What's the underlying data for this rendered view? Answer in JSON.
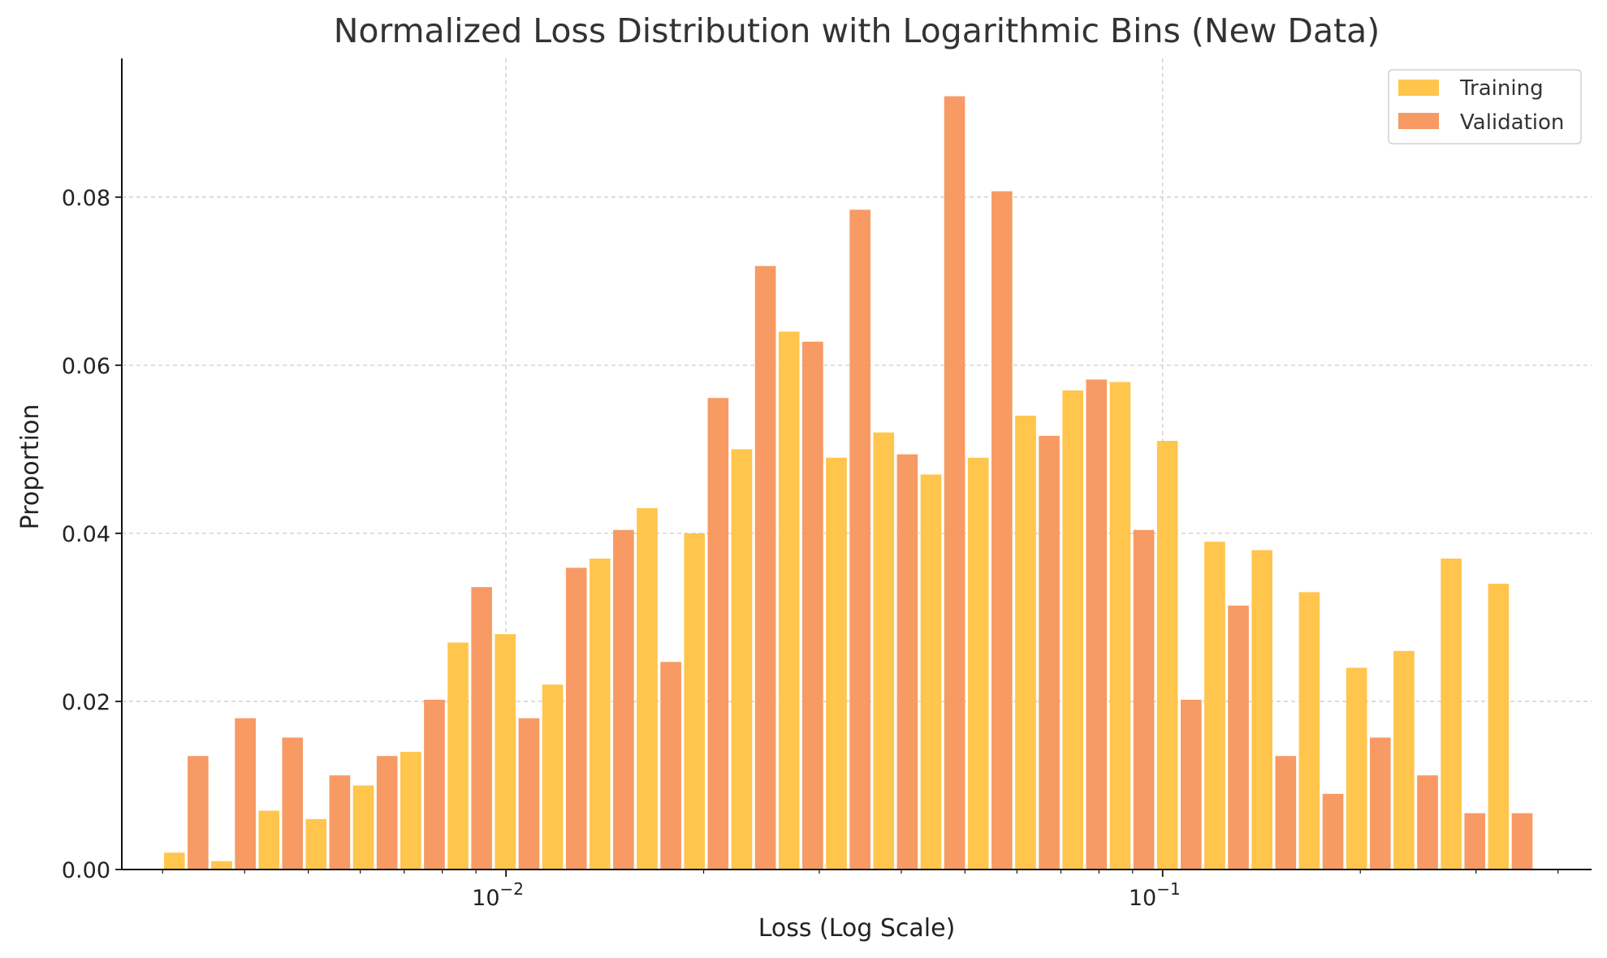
{
  "chart_data": {
    "type": "bar",
    "title": "Normalized Loss Distribution with Logarithmic Bins (New Data)",
    "xlabel": "Loss (Log Scale)",
    "ylabel": "Proportion",
    "x_scale": "log",
    "x_range": [
      0.0026,
      0.45
    ],
    "ylim": [
      0,
      0.0965
    ],
    "y_ticks": [
      "0.00",
      "0.02",
      "0.04",
      "0.06",
      "0.08"
    ],
    "x_ticks": [
      {
        "value": 0.01,
        "base": "10",
        "exp": "−2"
      },
      {
        "value": 0.1,
        "base": "10",
        "exp": "−1"
      }
    ],
    "grid": true,
    "legend_position": "top-right",
    "bin_edges": [
      0.003,
      0.00354,
      0.00418,
      0.00493,
      0.00582,
      0.00687,
      0.00811,
      0.00957,
      0.0113,
      0.01334,
      0.01574,
      0.01858,
      0.02193,
      0.02589,
      0.03056,
      0.03608,
      0.04258,
      0.05026,
      0.05933,
      0.07003,
      0.08266,
      0.09757,
      0.11517,
      0.13595,
      0.16047,
      0.18941,
      0.22358,
      0.2639,
      0.31151,
      0.3677
    ],
    "series": [
      {
        "name": "Training",
        "color": "#ffc54d",
        "values": [
          0.002,
          0.001,
          0.007,
          0.006,
          0.01,
          0.014,
          0.027,
          0.028,
          0.022,
          0.037,
          0.043,
          0.04,
          0.05,
          0.064,
          0.049,
          0.052,
          0.047,
          0.049,
          0.054,
          0.057,
          0.058,
          0.051,
          0.039,
          0.038,
          0.033,
          0.024,
          0.026,
          0.037,
          0.034
        ]
      },
      {
        "name": "Validation",
        "color": "#f79a63",
        "values": [
          0.0135,
          0.018,
          0.0157,
          0.0112,
          0.0135,
          0.0202,
          0.0336,
          0.018,
          0.0359,
          0.0404,
          0.0247,
          0.0561,
          0.0718,
          0.0628,
          0.0785,
          0.0494,
          0.092,
          0.0807,
          0.0516,
          0.0583,
          0.0404,
          0.0202,
          0.0314,
          0.0135,
          0.009,
          0.0157,
          0.0112,
          0.0067,
          0.0067
        ]
      }
    ]
  }
}
